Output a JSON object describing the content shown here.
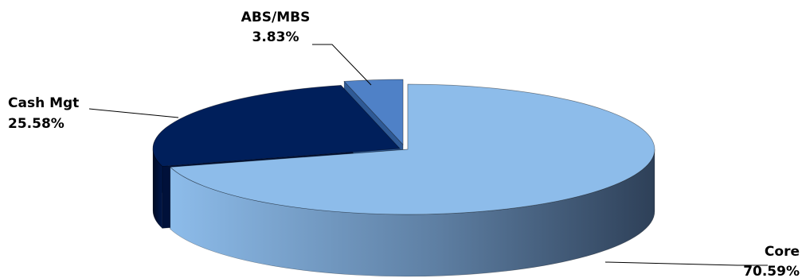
{
  "chart_data": {
    "type": "pie",
    "style": "3d-exploded",
    "categories": [
      "Core",
      "Cash Mgt",
      "ABS/MBS"
    ],
    "values": [
      70.59,
      25.58,
      3.83
    ],
    "value_labels": [
      "70.59%",
      "25.58%",
      "3.83%"
    ],
    "colors": {
      "Core": "#8DBCEA",
      "Cash Mgt": "#001F5B",
      "ABS/MBS": "#4F81C7"
    },
    "title": "",
    "legend": "none"
  }
}
